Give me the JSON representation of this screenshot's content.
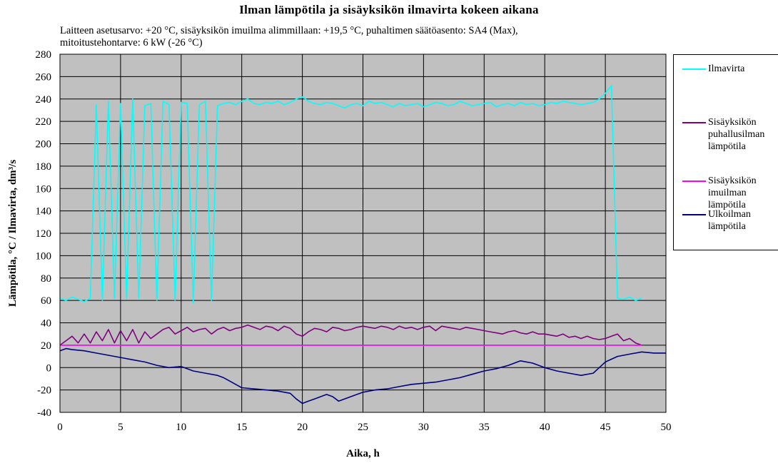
{
  "title": "Ilman lämpötila ja sisäyksikön ilmavirta kokeen aikana",
  "subtitle_lines": [
    "Laitteen asetusarvo: +20 °C, sisäyksikön imuilma alimmillaan: +19,5 °C, puhaltimen säätöasento: SA4 (Max),",
    "mitoitustehontarve: 6 kW (-26 °C)"
  ],
  "chart_data": {
    "type": "line",
    "xlabel": "Aika, h",
    "ylabel": "Lämpötila, °C / Ilmavirta, dm³/s",
    "xlim": [
      0,
      50
    ],
    "ylim": [
      -40,
      280
    ],
    "x_ticks": [
      0,
      5,
      10,
      15,
      20,
      25,
      30,
      35,
      40,
      45,
      50
    ],
    "y_ticks": [
      -40,
      -20,
      0,
      20,
      40,
      60,
      80,
      100,
      120,
      140,
      160,
      180,
      200,
      220,
      240,
      260,
      280
    ],
    "grid": true,
    "plot_background": "#c0c0c0",
    "legend_position": "right",
    "series": [
      {
        "name": "Ilmavirta",
        "color": "#00ffff",
        "x": [
          0,
          0.5,
          1.0,
          1.5,
          2.0,
          2.5,
          3.0,
          3.5,
          4.0,
          4.5,
          5.0,
          5.5,
          6.0,
          6.5,
          7.0,
          7.5,
          8.0,
          8.5,
          9.0,
          9.5,
          10.0,
          10.5,
          11.0,
          11.5,
          12.0,
          12.5,
          13.0,
          13.5,
          14.0,
          14.5,
          15.0,
          15.5,
          16.0,
          16.5,
          17.0,
          17.5,
          18.0,
          18.5,
          19.0,
          19.5,
          20.0,
          20.5,
          21.0,
          21.5,
          22.0,
          22.5,
          23.0,
          23.5,
          24.0,
          24.5,
          25.0,
          25.5,
          26.0,
          26.5,
          27.0,
          27.5,
          28.0,
          28.5,
          29.0,
          29.5,
          30.0,
          30.5,
          31.0,
          31.5,
          32.0,
          32.5,
          33.0,
          33.5,
          34.0,
          34.5,
          35.0,
          35.5,
          36.0,
          36.5,
          37.0,
          37.5,
          38.0,
          38.5,
          39.0,
          39.5,
          40.0,
          40.5,
          41.0,
          41.5,
          42.0,
          42.5,
          43.0,
          43.5,
          44.0,
          44.5,
          45.0,
          45.5,
          46.0,
          46.5,
          47.0,
          47.5,
          48.0
        ],
        "y": [
          62,
          60,
          63,
          61,
          59,
          62,
          235,
          60,
          238,
          62,
          236,
          61,
          240,
          62,
          234,
          236,
          60,
          238,
          235,
          60,
          237,
          236,
          58,
          235,
          238,
          60,
          234,
          236,
          237,
          235,
          238,
          240,
          236,
          235,
          237,
          236,
          238,
          235,
          237,
          240,
          242,
          238,
          236,
          235,
          237,
          236,
          234,
          232,
          235,
          236,
          234,
          238,
          236,
          237,
          235,
          233,
          236,
          234,
          235,
          236,
          233,
          235,
          237,
          236,
          234,
          235,
          238,
          236,
          234,
          235,
          236,
          237,
          233,
          235,
          236,
          234,
          237,
          235,
          236,
          234,
          235,
          237,
          236,
          238,
          237,
          236,
          235,
          236,
          237,
          240,
          245,
          252,
          62,
          61,
          63,
          60,
          62
        ]
      },
      {
        "name": "Sisäyksikön puhallusilman lämpötila",
        "color": "#800080",
        "x": [
          0,
          0.5,
          1.0,
          1.5,
          2.0,
          2.5,
          3.0,
          3.5,
          4.0,
          4.5,
          5.0,
          5.5,
          6.0,
          6.5,
          7.0,
          7.5,
          8.0,
          8.5,
          9.0,
          9.5,
          10.0,
          10.5,
          11.0,
          11.5,
          12.0,
          12.5,
          13.0,
          13.5,
          14.0,
          14.5,
          15.0,
          15.5,
          16.0,
          16.5,
          17.0,
          17.5,
          18.0,
          18.5,
          19.0,
          19.5,
          20.0,
          20.5,
          21.0,
          21.5,
          22.0,
          22.5,
          23.0,
          23.5,
          24.0,
          24.5,
          25.0,
          25.5,
          26.0,
          26.5,
          27.0,
          27.5,
          28.0,
          28.5,
          29.0,
          29.5,
          30.0,
          30.5,
          31.0,
          31.5,
          32.0,
          32.5,
          33.0,
          33.5,
          34.0,
          34.5,
          35.0,
          35.5,
          36.0,
          36.5,
          37.0,
          37.5,
          38.0,
          38.5,
          39.0,
          39.5,
          40.0,
          40.5,
          41.0,
          41.5,
          42.0,
          42.5,
          43.0,
          43.5,
          44.0,
          44.5,
          45.0,
          45.5,
          46.0,
          46.5,
          47.0,
          47.5,
          48.0
        ],
        "y": [
          20,
          24,
          28,
          22,
          30,
          22,
          32,
          24,
          34,
          22,
          33,
          24,
          34,
          22,
          32,
          26,
          30,
          34,
          36,
          30,
          33,
          36,
          32,
          34,
          35,
          30,
          34,
          36,
          33,
          35,
          36,
          38,
          36,
          34,
          37,
          36,
          33,
          37,
          35,
          30,
          28,
          32,
          35,
          34,
          32,
          36,
          35,
          33,
          34,
          36,
          37,
          36,
          35,
          37,
          36,
          34,
          37,
          35,
          36,
          34,
          36,
          37,
          33,
          37,
          36,
          35,
          34,
          36,
          35,
          34,
          33,
          32,
          31,
          30,
          32,
          33,
          31,
          30,
          32,
          30,
          30,
          29,
          28,
          30,
          27,
          28,
          26,
          28,
          26,
          25,
          26,
          28,
          30,
          24,
          26,
          22,
          20
        ]
      },
      {
        "name": "Sisäyksikön imuilman lämpötila",
        "color": "#ff00ff",
        "x": [
          0,
          5,
          10,
          15,
          20,
          25,
          30,
          35,
          40,
          45,
          48
        ],
        "y": [
          20,
          20,
          20,
          20,
          20,
          20,
          20,
          20,
          20,
          20,
          20
        ]
      },
      {
        "name": "Ulkoilman lämpötila",
        "color": "#000080",
        "x": [
          0,
          0.5,
          1,
          2,
          3,
          4,
          5,
          6,
          7,
          8,
          9,
          10,
          11,
          12,
          13,
          13.5,
          14,
          14.5,
          15,
          16,
          17,
          18,
          19,
          19.5,
          20,
          20.5,
          21,
          22,
          22.5,
          23,
          24,
          25,
          26,
          27,
          28,
          29,
          30,
          31,
          32,
          33,
          34,
          35,
          36,
          37,
          38,
          39,
          40,
          41,
          42,
          43,
          44,
          44.5,
          45,
          46,
          47,
          48,
          49,
          50
        ],
        "y": [
          15,
          17,
          16,
          15,
          13,
          11,
          9,
          7,
          5,
          2,
          0,
          1,
          -3,
          -5,
          -7,
          -9,
          -12,
          -15,
          -18,
          -19,
          -20,
          -21,
          -23,
          -28,
          -32,
          -30,
          -28,
          -24,
          -26,
          -30,
          -26,
          -22,
          -20,
          -19,
          -17,
          -15,
          -14,
          -13,
          -11,
          -9,
          -6,
          -3,
          -1,
          2,
          6,
          4,
          0,
          -3,
          -5,
          -7,
          -5,
          0,
          5,
          10,
          12,
          14,
          13,
          13
        ]
      }
    ]
  },
  "legend": {
    "entries": [
      {
        "label": "Ilmavirta",
        "color": "#00ffff"
      },
      {
        "label": "Sisäyksikön\npuhallusilman\nlämpötila",
        "color": "#800080"
      },
      {
        "label": "Sisäyksikön\nimuilman\nlämpötila",
        "color": "#ff00ff"
      },
      {
        "label": "Ulkoilman\nlämpötila",
        "color": "#000080"
      }
    ]
  }
}
